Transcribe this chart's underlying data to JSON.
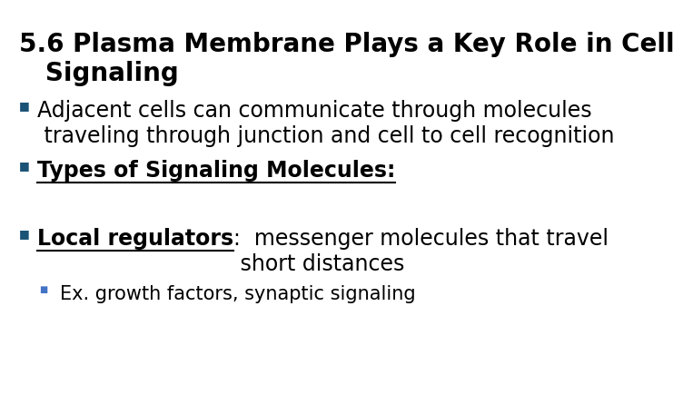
{
  "background_color": "#ffffff",
  "title_line1": "5.6 Plasma Membrane Plays a Key Role in Cell",
  "title_line2": "   Signaling",
  "title_fontsize": 20,
  "bullet_color": "#1a5276",
  "bullet_char": "■",
  "blue_bullet_color": "#4472c4"
}
